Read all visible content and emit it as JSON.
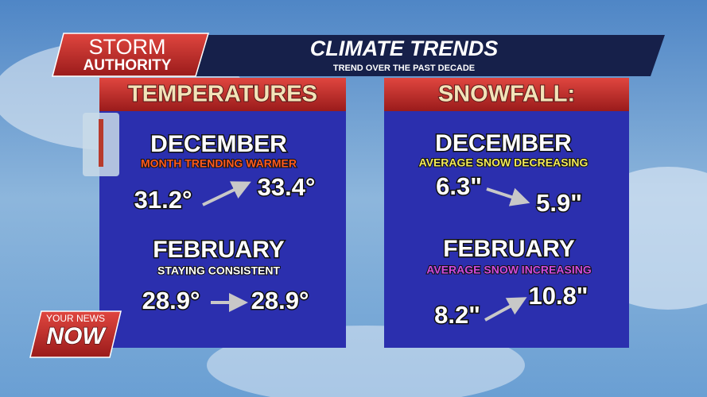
{
  "brand": {
    "line1": "STORM",
    "line2": "AUTHORITY"
  },
  "header": {
    "title": "CLIMATE TRENDS",
    "subtitle": "TREND OVER THE PAST DECADE"
  },
  "panels": [
    {
      "title": "TEMPERATURES",
      "items": [
        {
          "month": "DECEMBER",
          "note": "MONTH TRENDING WARMER",
          "from": "31.2°",
          "to": "33.4°"
        },
        {
          "month": "FEBRUARY",
          "note": "STAYING CONSISTENT",
          "from": "28.9°",
          "to": "28.9°"
        }
      ]
    },
    {
      "title": "SNOWFALL:",
      "items": [
        {
          "month": "DECEMBER",
          "note": "AVERAGE SNOW DECREASING",
          "from": "6.3\"",
          "to": "5.9\""
        },
        {
          "month": "FEBRUARY",
          "note": "AVERAGE SNOW INCREASING",
          "from": "8.2\"",
          "to": "10.8\""
        }
      ]
    }
  ],
  "logo": {
    "line1": "YOUR NEWS",
    "line2": "NOW"
  }
}
